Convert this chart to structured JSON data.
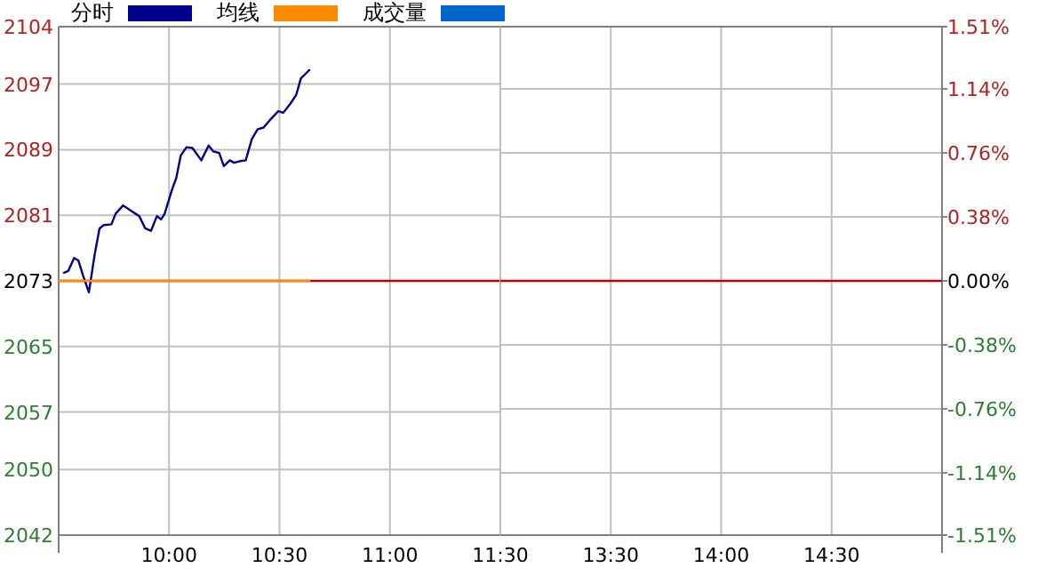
{
  "chart_data": [
    {
      "type": "line",
      "x": [
        9.524,
        9.543,
        9.57,
        9.589,
        9.61,
        9.637,
        9.663,
        9.685,
        9.704,
        9.739,
        9.758,
        9.792,
        9.83,
        9.865,
        9.892,
        9.918,
        9.945,
        9.964,
        9.98,
        10.013,
        10.033,
        10.053,
        10.079,
        10.106,
        10.146,
        10.179,
        10.2,
        10.227,
        10.248,
        10.275,
        10.294,
        10.321,
        10.347,
        10.375,
        10.401,
        10.428,
        10.463,
        10.495,
        10.517,
        10.549,
        10.576,
        10.597,
        10.616,
        10.635
      ],
      "series": [
        {
          "name": "分时",
          "color": "#00008b",
          "values": [
            2074.0,
            2074.2,
            2075.8,
            2075.5,
            2073.7,
            2071.6,
            2076.2,
            2079.4,
            2079.8,
            2079.9,
            2081.2,
            2082.2,
            2081.5,
            2080.9,
            2079.4,
            2079.1,
            2080.9,
            2080.5,
            2081.2,
            2084.1,
            2085.6,
            2088.3,
            2089.3,
            2089.2,
            2087.7,
            2089.5,
            2088.8,
            2088.6,
            2087.0,
            2087.7,
            2087.4,
            2087.6,
            2087.7,
            2090.3,
            2091.5,
            2091.7,
            2092.8,
            2093.7,
            2093.5,
            2094.6,
            2095.7,
            2097.7,
            2098.2,
            2098.7
          ]
        },
        {
          "name": "均线",
          "color": "#ff8c00",
          "x": [
            9.5,
            10.635
          ],
          "values": [
            2073,
            2073
          ]
        },
        {
          "name": "成交量",
          "color": "#0066cc",
          "values": [
            null,
            null,
            null,
            null,
            null,
            null,
            null,
            null,
            null,
            null,
            null,
            null,
            null,
            null,
            null,
            null,
            null,
            null,
            null,
            null,
            null,
            null,
            null,
            null,
            null,
            null,
            null,
            null,
            null,
            null,
            null,
            null,
            null,
            null,
            null,
            null,
            null,
            null,
            null,
            null,
            null,
            null,
            null,
            null
          ]
        }
      ],
      "xlim": [
        9.5,
        11.5
      ],
      "xticks": [
        {
          "value": 10,
          "label": "10:00"
        },
        {
          "value": 10.5,
          "label": "10:30"
        },
        {
          "value": 11,
          "label": "11:00"
        },
        {
          "value": 11.5,
          "label": "11:30"
        }
      ],
      "ylim": [
        2042,
        2104
      ],
      "yticks": [
        2042,
        2050,
        2057,
        2065,
        2073,
        2081,
        2089,
        2097,
        2104
      ],
      "ref_lines": [
        {
          "axis": "y",
          "value": 2073,
          "color": "#c00000"
        }
      ],
      "grid": true,
      "legend": "top",
      "marker": "none",
      "line_style": "solid"
    },
    {
      "type": "line",
      "xlim": [
        13,
        15
      ],
      "xticks": [
        {
          "value": 13.5,
          "label": "13:30"
        },
        {
          "value": 14,
          "label": "14:00"
        },
        {
          "value": 14.5,
          "label": "14:30"
        }
      ],
      "y2lim": [
        -1.51,
        1.51
      ],
      "y2ticks": [
        {
          "value": -1.51,
          "label": "-1.51%"
        },
        {
          "value": -1.14,
          "label": "-1.14%"
        },
        {
          "value": -0.76,
          "label": "-0.76%"
        },
        {
          "value": -0.38,
          "label": "-0.38%"
        },
        {
          "value": 0,
          "label": "0.00%"
        },
        {
          "value": 0.38,
          "label": "0.38%"
        },
        {
          "value": 0.76,
          "label": "0.76%"
        },
        {
          "value": 1.14,
          "label": "1.14%"
        },
        {
          "value": 1.51,
          "label": "1.51%"
        }
      ],
      "ref_lines": [
        {
          "axis": "y2",
          "value": 0,
          "color": "#c00000"
        }
      ],
      "grid": true
    }
  ]
}
